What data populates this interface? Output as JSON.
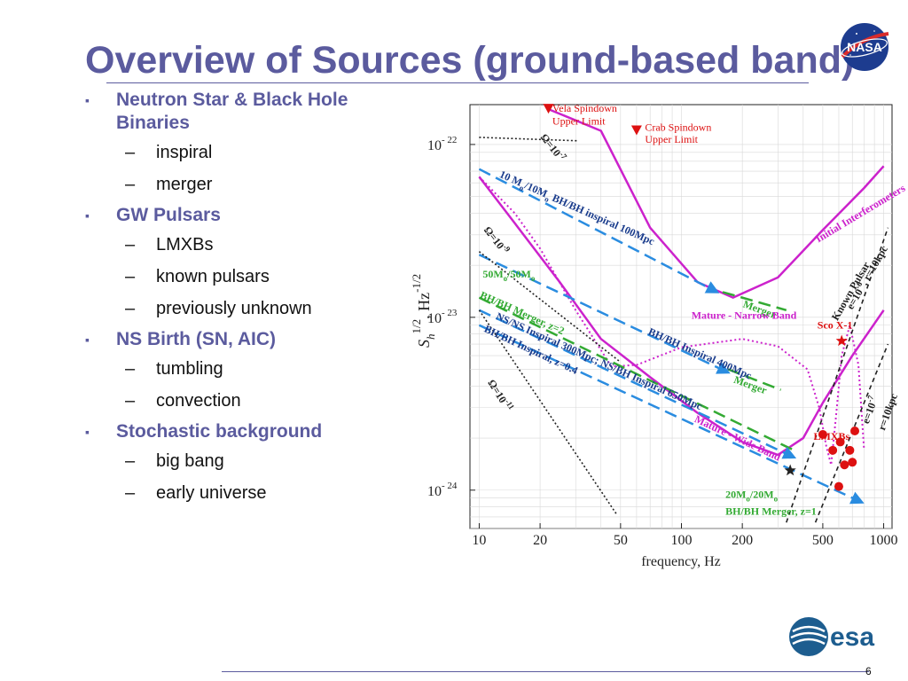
{
  "slide": {
    "title": "Overview of Sources (ground-based band)",
    "page_number": "6",
    "nasa_logo_text": "NASA",
    "esa_logo_text": "esa",
    "bullet_marker": "▪",
    "sub_marker": "–",
    "bullets": [
      {
        "label": "Neutron Star & Black Hole Binaries",
        "subs": [
          "inspiral",
          "merger"
        ]
      },
      {
        "label": "GW Pulsars",
        "subs": [
          "LMXBs",
          "known pulsars",
          "previously unknown"
        ]
      },
      {
        "label": "NS Birth (SN, AIC)",
        "subs": [
          "tumbling",
          "convection"
        ]
      },
      {
        "label": "Stochastic background",
        "subs": [
          "big bang",
          "early universe"
        ]
      }
    ]
  },
  "colors": {
    "title": "#5b5b9e",
    "magenta": "#cc22cc",
    "blue": "#2a8ce0",
    "green": "#33aa33",
    "red": "#dd1111",
    "black": "#222222",
    "navy": "#1a3c8c"
  },
  "chart_data": {
    "type": "line",
    "xlabel": "frequency, Hz",
    "xscale": "log",
    "yscale": "log",
    "xlim": [
      9,
      1100
    ],
    "ylim": [
      6e-25,
      1.7e-22
    ],
    "grid": true,
    "x_ticks": [
      10,
      20,
      50,
      100,
      200,
      500,
      1000
    ],
    "x_tick_labels": [
      "10",
      "20",
      "50",
      "100",
      "200",
      "500",
      "1000"
    ],
    "y_ticks": [
      1e-22,
      1e-23,
      1e-24
    ],
    "y_tick_labels": [
      {
        "base": "10",
        "exp": "- 22"
      },
      {
        "base": "10",
        "exp": "- 23"
      },
      {
        "base": "10",
        "exp": "- 24"
      }
    ],
    "ylabel": {
      "main": "S",
      "sub": "h",
      "sup1": "1/2",
      "mid": ", Hz",
      "sup2": "-1/2"
    },
    "series": [
      {
        "name": "Initial Interferometers",
        "color": "#cc22cc",
        "style": "solid",
        "points": [
          [
            22,
            1.6e-22
          ],
          [
            40,
            1.2e-22
          ],
          [
            70,
            3.3e-23
          ],
          [
            120,
            1.6e-23
          ],
          [
            180,
            1.3e-23
          ],
          [
            300,
            1.7e-23
          ],
          [
            500,
            3.2e-23
          ],
          [
            800,
            5.6e-23
          ],
          [
            1000,
            7.5e-23
          ]
        ]
      },
      {
        "name": "Mature - Narrow Band",
        "color": "#cc22cc",
        "style": "solid",
        "points": [
          [
            10,
            6.5e-23
          ],
          [
            15,
            3.5e-23
          ],
          [
            25,
            1.6e-23
          ],
          [
            40,
            7.5e-24
          ],
          [
            70,
            4.5e-24
          ],
          [
            120,
            2.8e-24
          ],
          [
            200,
            1.9e-24
          ],
          [
            300,
            1.6e-24
          ],
          [
            400,
            2e-24
          ],
          [
            500,
            3.2e-24
          ],
          [
            700,
            6e-24
          ],
          [
            1000,
            1.1e-23
          ]
        ]
      },
      {
        "name": "Mature - Wide Band",
        "color": "#cc22cc",
        "style": "dotted",
        "points": [
          [
            10,
            6.5e-23
          ],
          [
            15,
            4e-23
          ],
          [
            20,
            2.5e-23
          ],
          [
            30,
            1.1e-23
          ],
          [
            45,
            5.2e-24
          ],
          [
            60,
            5.3e-24
          ],
          [
            100,
            6.7e-24
          ],
          [
            200,
            7.5e-24
          ],
          [
            300,
            6.8e-24
          ],
          [
            420,
            5e-24
          ],
          [
            480,
            3e-24
          ],
          [
            520,
            1.8e-24
          ],
          [
            550,
            1.4e-24
          ],
          [
            580,
            2.6e-24
          ],
          [
            620,
            6e-24
          ],
          [
            680,
            9e-24
          ],
          [
            750,
            5.3e-24
          ],
          [
            800,
            1.7e-24
          ]
        ]
      },
      {
        "name": "10 Mo/10Mo BH/BH inspiral 100Mpc",
        "color": "#2a8ce0",
        "style": "dashed",
        "points": [
          [
            10,
            7.2e-23
          ],
          [
            150,
            1.4e-23
          ]
        ]
      },
      {
        "name": "Merger (10 Mo)",
        "color": "#33aa33",
        "style": "dashed",
        "points": [
          [
            160,
            1.4e-23
          ],
          [
            330,
            1.1e-23
          ]
        ]
      },
      {
        "name": "BH/BH Inspiral 400Mpc",
        "color": "#2a8ce0",
        "style": "dashed",
        "points": [
          [
            10,
            2.3e-23
          ],
          [
            170,
            4.8e-24
          ]
        ]
      },
      {
        "name": "Merger (400Mpc)",
        "color": "#33aa33",
        "style": "dashed",
        "points": [
          [
            170,
            5e-24
          ],
          [
            310,
            3.8e-24
          ]
        ]
      },
      {
        "name": "50Mo/50Mo BH/BH Merger, z=2",
        "color": "#33aa33",
        "style": "dashed",
        "points": [
          [
            10,
            1.3e-23
          ],
          [
            360,
            1.7e-24
          ]
        ]
      },
      {
        "name": "NS/NS Inspiral 300Mpc; NS/BH Inspiral 650Mpc",
        "color": "#2a8ce0",
        "style": "dashed",
        "points": [
          [
            10,
            1.1e-23
          ],
          [
            360,
            1.55e-24
          ]
        ]
      },
      {
        "name": "BH/BH Inspiral, z=0.4",
        "color": "#2a8ce0",
        "style": "dashed",
        "points": [
          [
            10,
            9e-24
          ],
          [
            780,
            8.5e-25
          ]
        ]
      },
      {
        "name": "Omega=10^-7",
        "color": "#222222",
        "style": "dotted",
        "points": [
          [
            10,
            1.1e-22
          ],
          [
            31,
            1.05e-22
          ]
        ]
      },
      {
        "name": "Omega=10^-9",
        "color": "#222222",
        "style": "dotted",
        "points": [
          [
            10,
            2.4e-23
          ],
          [
            50,
            5.5e-24
          ]
        ]
      },
      {
        "name": "Omega=10^-11",
        "color": "#222222",
        "style": "dotted",
        "points": [
          [
            10,
            1.1e-23
          ],
          [
            48,
            7.2e-25
          ]
        ]
      },
      {
        "name": "Known Pulsar e=10^-6, r=10kpc",
        "color": "#222222",
        "style": "dashed",
        "points": [
          [
            330,
            6.5e-25
          ],
          [
            1050,
            3.3e-23
          ]
        ]
      },
      {
        "name": "e=10^-7, r=10kpc",
        "color": "#222222",
        "style": "dashed",
        "points": [
          [
            460,
            6.5e-25
          ],
          [
            1050,
            7e-24
          ]
        ]
      }
    ],
    "markers": [
      {
        "name": "Vela Spindown Upper Limit",
        "shape": "triangle",
        "color": "#dd1111",
        "x": 22,
        "y": 1.6e-22
      },
      {
        "name": "Crab Spindown Upper Limit",
        "shape": "triangle",
        "color": "#dd1111",
        "x": 60,
        "y": 1.2e-22
      },
      {
        "name": "Sco X-1",
        "shape": "star",
        "color": "#dd1111",
        "x": 620,
        "y": 7.3e-24
      },
      {
        "name": "20Mo/20Mo BH/BH Merger, z=1",
        "shape": "star",
        "color": "#222222",
        "x": 345,
        "y": 1.3e-24
      }
    ],
    "lmxb_points": [
      [
        500,
        2.1e-24
      ],
      [
        560,
        1.7e-24
      ],
      [
        610,
        1.9e-24
      ],
      [
        640,
        1.4e-24
      ],
      [
        720,
        2.2e-24
      ],
      [
        700,
        1.45e-24
      ],
      [
        680,
        1.7e-24
      ],
      [
        600,
        1.05e-24
      ]
    ],
    "annotations": [
      {
        "text": "Vela Spindown",
        "color": "#dd1111",
        "x": 23,
        "y": 1.55e-22
      },
      {
        "text": "Upper Limit",
        "color": "#dd1111",
        "x": 23,
        "y": 1.3e-22
      },
      {
        "text": "Crab Spindown",
        "color": "#dd1111",
        "x": 66,
        "y": 1.2e-22
      },
      {
        "text": "Upper Limit",
        "color": "#dd1111",
        "x": 66,
        "y": 1.02e-22
      },
      {
        "text": "Initial Interferometers",
        "color": "#cc22cc",
        "x": 475,
        "y": 2.7e-23,
        "angle": -31
      },
      {
        "text": "10 M",
        "sub": "o",
        "tail": "/10M",
        "sub2": "o",
        "tail2": " BH/BH inspiral 100Mpc",
        "color": "#1a3c8c",
        "x": 12.5,
        "y": 6.5e-23,
        "angle": 24
      },
      {
        "text": "Merger",
        "color": "#33aa33",
        "x": 200,
        "y": 1.15e-23,
        "angle": 20
      },
      {
        "text": "BH/BH Inspiral 400Mpc",
        "color": "#1a3c8c",
        "x": 68,
        "y": 8e-24,
        "angle": 24
      },
      {
        "text": "Merger",
        "color": "#33aa33",
        "x": 180,
        "y": 4.2e-24,
        "angle": 20
      },
      {
        "text": "Mature - Narrow Band",
        "color": "#cc22cc",
        "x": 112,
        "y": 9.8e-24
      },
      {
        "text": "Mature - Wide Band",
        "color": "#cc22cc",
        "x": 115,
        "y": 2.5e-24,
        "angle": 25
      },
      {
        "text": "50M",
        "sub": "o",
        "tail": "/50M",
        "sub2": "o",
        "color": "#33aa33",
        "x": 10.4,
        "y": 1.7e-23
      },
      {
        "text": "BH/BH Merger, z=2",
        "color": "#33aa33",
        "x": 10,
        "y": 1.3e-23,
        "angle": 24
      },
      {
        "text": "NS/NS Inspiral 300Mpc; NS/BH Inspiral 650Mpc",
        "color": "#1a3c8c",
        "x": 12,
        "y": 9.8e-24,
        "angle": 24
      },
      {
        "text": "BH/BH Inspiral, z=0.4",
        "color": "#1a3c8c",
        "x": 10.5,
        "y": 8.3e-24,
        "angle": 25
      },
      {
        "text": "LMXBs",
        "color": "#dd1111",
        "x": 450,
        "y": 1.95e-24
      },
      {
        "text": "Sco X-1",
        "color": "#dd1111",
        "x": 470,
        "y": 8.6e-24
      },
      {
        "text": "20M",
        "sub": "o",
        "tail": "/20M",
        "sub2": "o",
        "color": "#33aa33",
        "x": 165,
        "y": 9e-25
      },
      {
        "text": "BH/BH Merger, z=1",
        "color": "#33aa33",
        "x": 165,
        "y": 7.2e-25
      },
      {
        "text": "Known Pulsar",
        "color": "#222222",
        "x": 590,
        "y": 9.5e-24,
        "angle": -60
      },
      {
        "text": "e=10",
        "sup": "-6",
        "tail": ", r=10kpc",
        "color": "#222222",
        "x": 700,
        "y": 1.1e-23,
        "angle": -60
      },
      {
        "text": "e=10",
        "sup": "-7",
        "color": "#222222",
        "x": 840,
        "y": 2.4e-24,
        "angle": -70
      },
      {
        "text": "r=10kpc",
        "color": "#222222",
        "x": 1010,
        "y": 2.2e-24,
        "angle": -70
      },
      {
        "text": "Ω=10",
        "sup": "-7",
        "color": "#222222",
        "x": 20,
        "y": 1.1e-22,
        "angle": 52
      },
      {
        "text": "Ω=10",
        "sup": "-9",
        "color": "#222222",
        "x": 10.5,
        "y": 3.2e-23,
        "angle": 52
      },
      {
        "text": "Ω=10",
        "sup": "-11",
        "color": "#222222",
        "x": 11,
        "y": 4.2e-24,
        "angle": 58
      }
    ]
  }
}
